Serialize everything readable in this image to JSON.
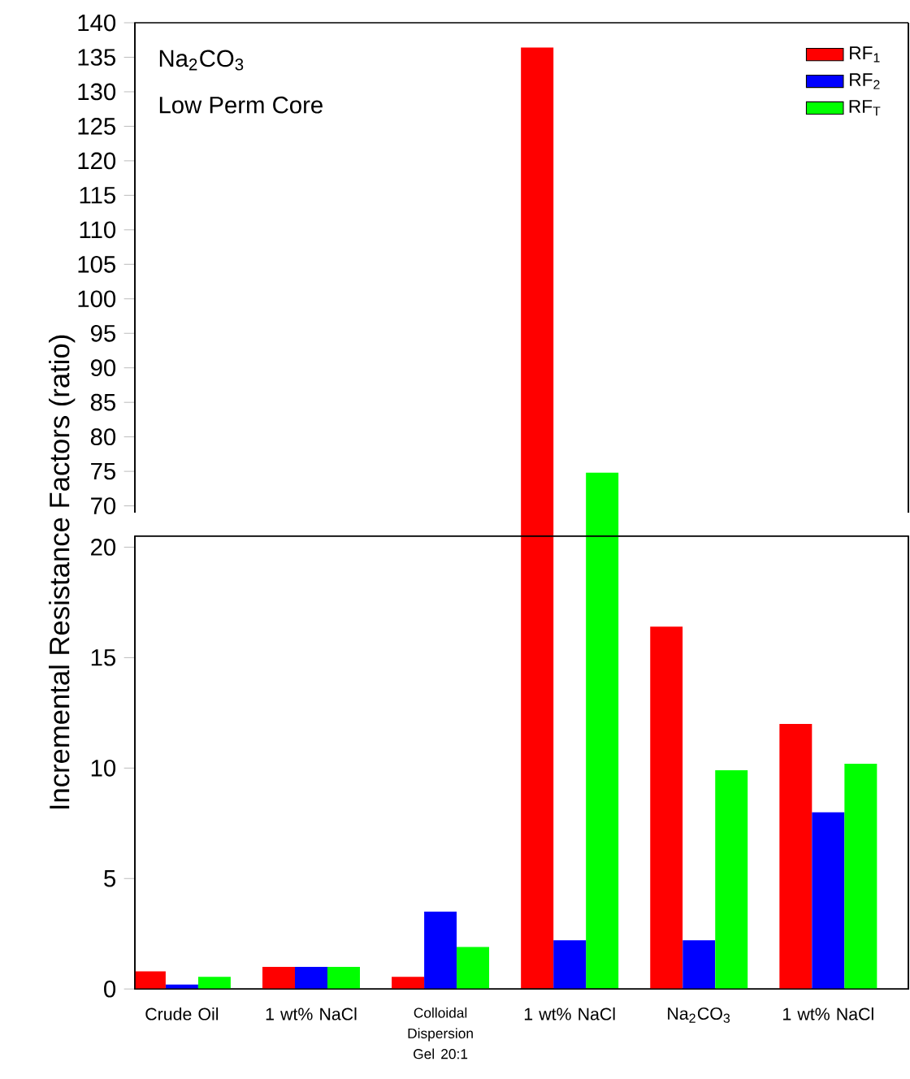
{
  "chart_data": [
    {
      "type": "bar",
      "series": [
        {
          "name": "RF$_{1}$",
          "color": "#ff0000",
          "values": [
            null,
            null,
            null,
            136.4,
            null,
            null
          ]
        },
        {
          "name": "RF$_{2}$",
          "color": "#0000ff",
          "values": [
            null,
            null,
            null,
            null,
            null,
            null
          ]
        },
        {
          "name": "RF$_{T}$",
          "color": "#00ff00",
          "values": [
            null,
            null,
            null,
            74.8,
            null,
            null
          ]
        }
      ],
      "ylim": [
        69,
        140
      ],
      "yticks": [
        70,
        75,
        80,
        85,
        90,
        95,
        100,
        105,
        110,
        115,
        120,
        125,
        130,
        135,
        140
      ],
      "tick_labels": "y",
      "legend": "top right",
      "annotations": [
        "Na$_{2}$CO$_{3}$",
        "Low Perm Core"
      ]
    },
    {
      "type": "bar",
      "categories": [
        "Crude Oil",
        "1 wt% NaCl",
        "Colloidal Dispersion Gel 20:1",
        "1 wt% NaCl",
        "Na$_{2}$CO$_{3}$",
        "1 wt% NaCl"
      ],
      "series": [
        {
          "color": "#ff0000",
          "values": [
            0.8,
            1.0,
            0.55,
            null,
            16.4,
            12.0
          ]
        },
        {
          "color": "#0000ff",
          "values": [
            0.2,
            1.0,
            3.5,
            2.2,
            2.2,
            8.0
          ]
        },
        {
          "color": "#00ff00",
          "values": [
            0.55,
            1.0,
            1.9,
            null,
            9.9,
            10.2
          ]
        }
      ],
      "tick_labels": true,
      "ylim": [
        0,
        20.5
      ],
      "yticks": [
        0,
        5,
        10,
        15,
        20
      ],
      "ylabel": "Incremental Resistance Factors (ratio)"
    }
  ]
}
